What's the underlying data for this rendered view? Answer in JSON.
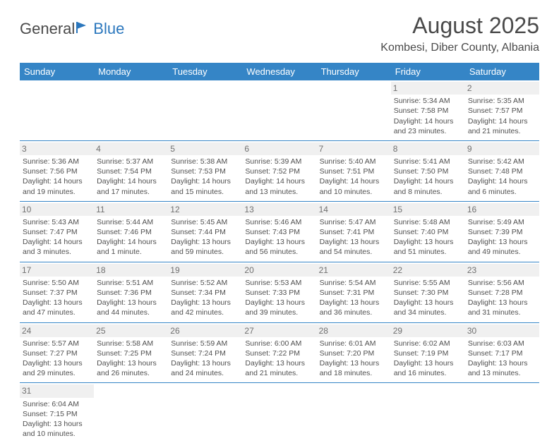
{
  "logo": {
    "text1": "General",
    "text2": "Blue"
  },
  "title": "August 2025",
  "location": "Kombesi, Diber County, Albania",
  "colors": {
    "header_bg": "#3585c6",
    "header_fg": "#ffffff",
    "rule": "#3585c6",
    "daynum_bg": "#f0f0f0"
  },
  "day_headers": [
    "Sunday",
    "Monday",
    "Tuesday",
    "Wednesday",
    "Thursday",
    "Friday",
    "Saturday"
  ],
  "weeks": [
    [
      null,
      null,
      null,
      null,
      null,
      {
        "n": "1",
        "sr": "Sunrise: 5:34 AM",
        "ss": "Sunset: 7:58 PM",
        "d1": "Daylight: 14 hours",
        "d2": "and 23 minutes."
      },
      {
        "n": "2",
        "sr": "Sunrise: 5:35 AM",
        "ss": "Sunset: 7:57 PM",
        "d1": "Daylight: 14 hours",
        "d2": "and 21 minutes."
      }
    ],
    [
      {
        "n": "3",
        "sr": "Sunrise: 5:36 AM",
        "ss": "Sunset: 7:56 PM",
        "d1": "Daylight: 14 hours",
        "d2": "and 19 minutes."
      },
      {
        "n": "4",
        "sr": "Sunrise: 5:37 AM",
        "ss": "Sunset: 7:54 PM",
        "d1": "Daylight: 14 hours",
        "d2": "and 17 minutes."
      },
      {
        "n": "5",
        "sr": "Sunrise: 5:38 AM",
        "ss": "Sunset: 7:53 PM",
        "d1": "Daylight: 14 hours",
        "d2": "and 15 minutes."
      },
      {
        "n": "6",
        "sr": "Sunrise: 5:39 AM",
        "ss": "Sunset: 7:52 PM",
        "d1": "Daylight: 14 hours",
        "d2": "and 13 minutes."
      },
      {
        "n": "7",
        "sr": "Sunrise: 5:40 AM",
        "ss": "Sunset: 7:51 PM",
        "d1": "Daylight: 14 hours",
        "d2": "and 10 minutes."
      },
      {
        "n": "8",
        "sr": "Sunrise: 5:41 AM",
        "ss": "Sunset: 7:50 PM",
        "d1": "Daylight: 14 hours",
        "d2": "and 8 minutes."
      },
      {
        "n": "9",
        "sr": "Sunrise: 5:42 AM",
        "ss": "Sunset: 7:48 PM",
        "d1": "Daylight: 14 hours",
        "d2": "and 6 minutes."
      }
    ],
    [
      {
        "n": "10",
        "sr": "Sunrise: 5:43 AM",
        "ss": "Sunset: 7:47 PM",
        "d1": "Daylight: 14 hours",
        "d2": "and 3 minutes."
      },
      {
        "n": "11",
        "sr": "Sunrise: 5:44 AM",
        "ss": "Sunset: 7:46 PM",
        "d1": "Daylight: 14 hours",
        "d2": "and 1 minute."
      },
      {
        "n": "12",
        "sr": "Sunrise: 5:45 AM",
        "ss": "Sunset: 7:44 PM",
        "d1": "Daylight: 13 hours",
        "d2": "and 59 minutes."
      },
      {
        "n": "13",
        "sr": "Sunrise: 5:46 AM",
        "ss": "Sunset: 7:43 PM",
        "d1": "Daylight: 13 hours",
        "d2": "and 56 minutes."
      },
      {
        "n": "14",
        "sr": "Sunrise: 5:47 AM",
        "ss": "Sunset: 7:41 PM",
        "d1": "Daylight: 13 hours",
        "d2": "and 54 minutes."
      },
      {
        "n": "15",
        "sr": "Sunrise: 5:48 AM",
        "ss": "Sunset: 7:40 PM",
        "d1": "Daylight: 13 hours",
        "d2": "and 51 minutes."
      },
      {
        "n": "16",
        "sr": "Sunrise: 5:49 AM",
        "ss": "Sunset: 7:39 PM",
        "d1": "Daylight: 13 hours",
        "d2": "and 49 minutes."
      }
    ],
    [
      {
        "n": "17",
        "sr": "Sunrise: 5:50 AM",
        "ss": "Sunset: 7:37 PM",
        "d1": "Daylight: 13 hours",
        "d2": "and 47 minutes."
      },
      {
        "n": "18",
        "sr": "Sunrise: 5:51 AM",
        "ss": "Sunset: 7:36 PM",
        "d1": "Daylight: 13 hours",
        "d2": "and 44 minutes."
      },
      {
        "n": "19",
        "sr": "Sunrise: 5:52 AM",
        "ss": "Sunset: 7:34 PM",
        "d1": "Daylight: 13 hours",
        "d2": "and 42 minutes."
      },
      {
        "n": "20",
        "sr": "Sunrise: 5:53 AM",
        "ss": "Sunset: 7:33 PM",
        "d1": "Daylight: 13 hours",
        "d2": "and 39 minutes."
      },
      {
        "n": "21",
        "sr": "Sunrise: 5:54 AM",
        "ss": "Sunset: 7:31 PM",
        "d1": "Daylight: 13 hours",
        "d2": "and 36 minutes."
      },
      {
        "n": "22",
        "sr": "Sunrise: 5:55 AM",
        "ss": "Sunset: 7:30 PM",
        "d1": "Daylight: 13 hours",
        "d2": "and 34 minutes."
      },
      {
        "n": "23",
        "sr": "Sunrise: 5:56 AM",
        "ss": "Sunset: 7:28 PM",
        "d1": "Daylight: 13 hours",
        "d2": "and 31 minutes."
      }
    ],
    [
      {
        "n": "24",
        "sr": "Sunrise: 5:57 AM",
        "ss": "Sunset: 7:27 PM",
        "d1": "Daylight: 13 hours",
        "d2": "and 29 minutes."
      },
      {
        "n": "25",
        "sr": "Sunrise: 5:58 AM",
        "ss": "Sunset: 7:25 PM",
        "d1": "Daylight: 13 hours",
        "d2": "and 26 minutes."
      },
      {
        "n": "26",
        "sr": "Sunrise: 5:59 AM",
        "ss": "Sunset: 7:24 PM",
        "d1": "Daylight: 13 hours",
        "d2": "and 24 minutes."
      },
      {
        "n": "27",
        "sr": "Sunrise: 6:00 AM",
        "ss": "Sunset: 7:22 PM",
        "d1": "Daylight: 13 hours",
        "d2": "and 21 minutes."
      },
      {
        "n": "28",
        "sr": "Sunrise: 6:01 AM",
        "ss": "Sunset: 7:20 PM",
        "d1": "Daylight: 13 hours",
        "d2": "and 18 minutes."
      },
      {
        "n": "29",
        "sr": "Sunrise: 6:02 AM",
        "ss": "Sunset: 7:19 PM",
        "d1": "Daylight: 13 hours",
        "d2": "and 16 minutes."
      },
      {
        "n": "30",
        "sr": "Sunrise: 6:03 AM",
        "ss": "Sunset: 7:17 PM",
        "d1": "Daylight: 13 hours",
        "d2": "and 13 minutes."
      }
    ],
    [
      {
        "n": "31",
        "sr": "Sunrise: 6:04 AM",
        "ss": "Sunset: 7:15 PM",
        "d1": "Daylight: 13 hours",
        "d2": "and 10 minutes."
      },
      null,
      null,
      null,
      null,
      null,
      null
    ]
  ]
}
